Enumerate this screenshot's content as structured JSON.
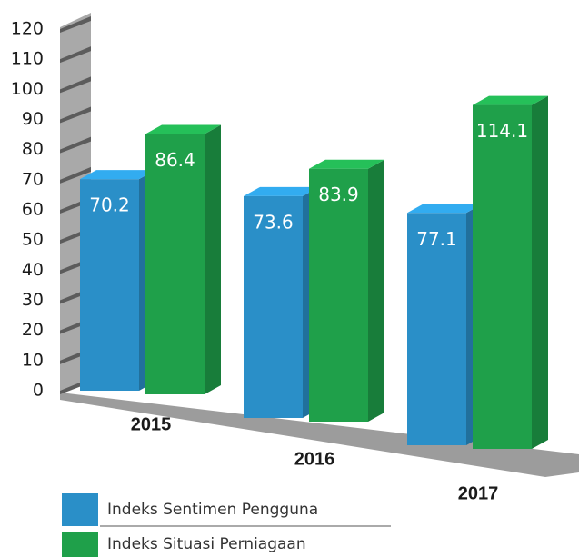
{
  "chart_data": {
    "type": "bar3d",
    "categories": [
      "2015",
      "2016",
      "2017"
    ],
    "series": [
      {
        "name": "Indeks Sentimen Pengguna",
        "color": "#2a8fc8",
        "values": [
          70.2,
          73.6,
          77.1
        ]
      },
      {
        "name": "Indeks Situasi Perniagaan",
        "color": "#1fa04a",
        "values": [
          86.4,
          83.9,
          114.1
        ]
      }
    ],
    "ylim": [
      0,
      120
    ],
    "yticks": [
      0,
      10,
      20,
      30,
      40,
      50,
      60,
      70,
      80,
      90,
      100,
      110,
      120
    ]
  }
}
